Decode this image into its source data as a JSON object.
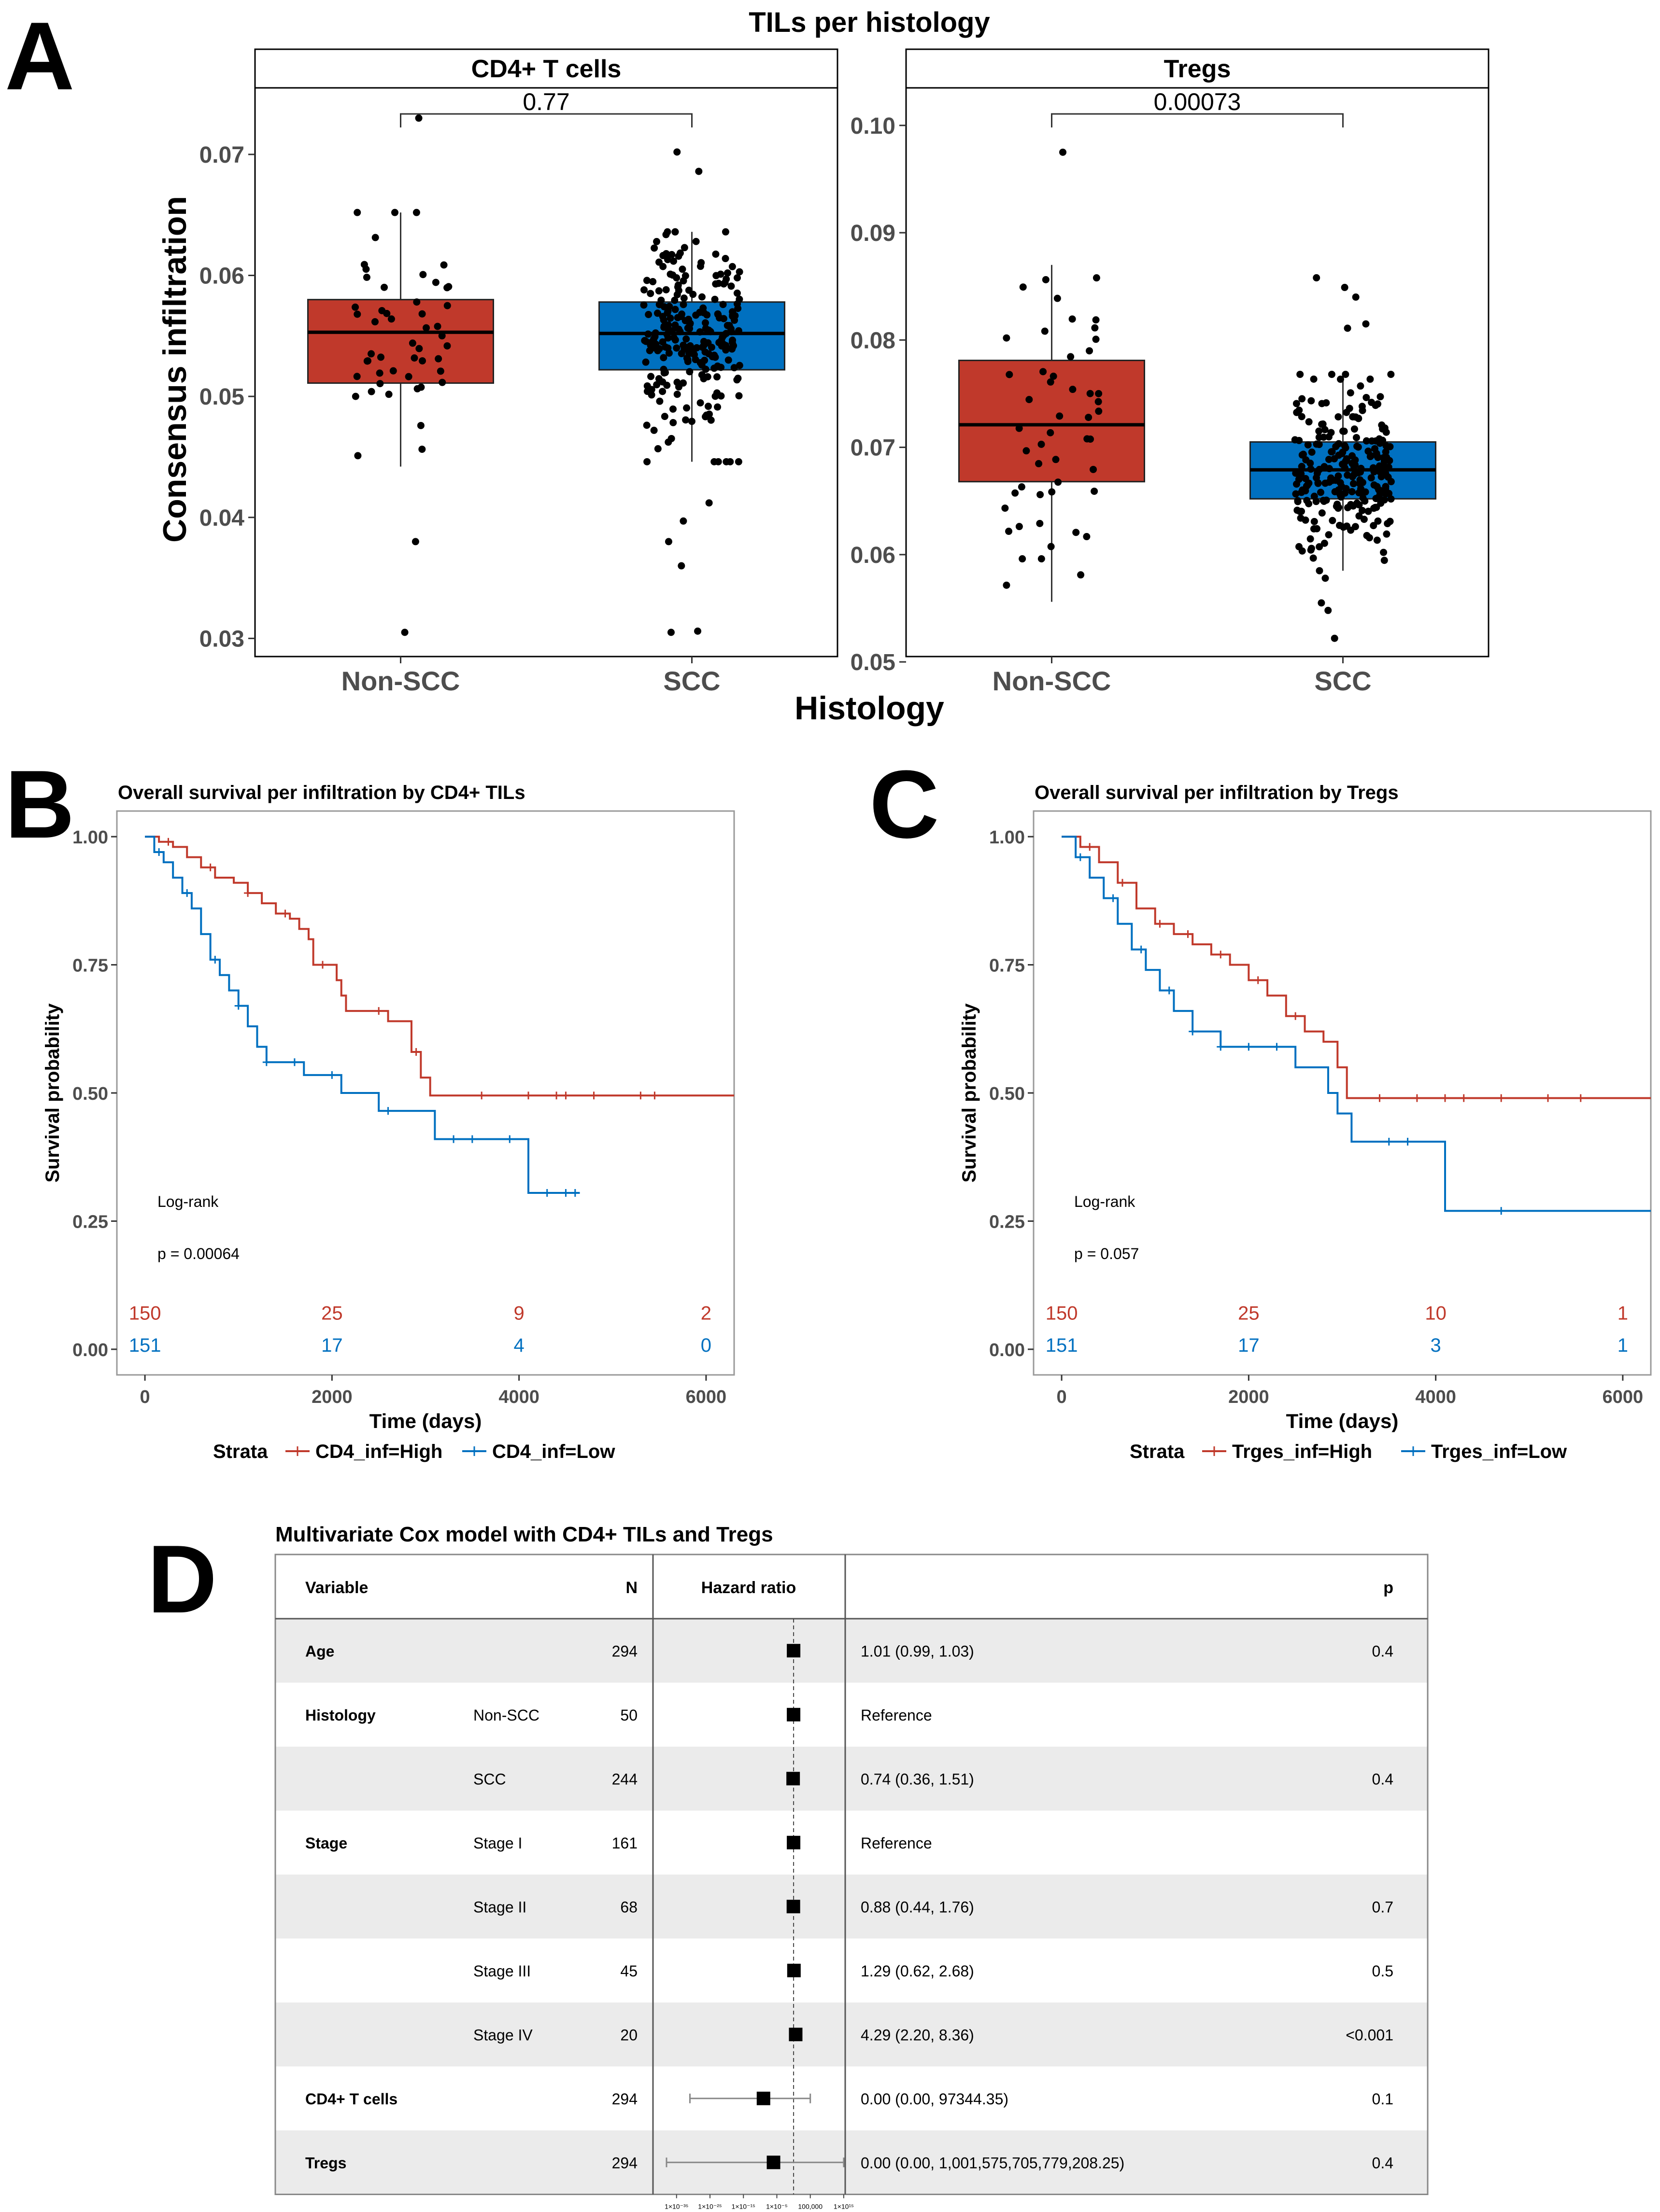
{
  "panel_letters": [
    "A",
    "B",
    "C",
    "D"
  ],
  "colors": {
    "red": "#c0392b",
    "blue": "#0070c0",
    "grid": "#e0e0e0",
    "band": "#ebebeb"
  },
  "chart_data": [
    {
      "id": "A",
      "type": "box",
      "title": "TILs per histology",
      "xlabel": "Histology",
      "ylabel": "Consensus infiltration",
      "facets": [
        {
          "name": "CD4+ T cells",
          "ylim": [
            0.0285,
            0.0755
          ],
          "yticks": [
            0.03,
            0.04,
            0.05,
            0.06,
            0.07
          ],
          "ytick_labels": [
            "0.03",
            "0.04",
            "0.05",
            "0.06",
            "0.07"
          ],
          "categories": [
            "Non-SCC",
            "SCC"
          ],
          "pvalue": "0.77",
          "boxes": [
            {
              "group": "Non-SCC",
              "color": "#c0392b",
              "q1": 0.0511,
              "median": 0.0553,
              "q3": 0.058,
              "whisker_low": 0.0442,
              "whisker_high": 0.0652
            },
            {
              "group": "SCC",
              "color": "#0070c0",
              "q1": 0.0522,
              "median": 0.0552,
              "q3": 0.0578,
              "whisker_low": 0.0446,
              "whisker_high": 0.0636
            }
          ],
          "outliers": [
            {
              "group": "Non-SCC",
              "values": [
                0.073,
                0.038,
                0.0305
              ]
            },
            {
              "group": "SCC",
              "values": [
                0.0702,
                0.0686,
                0.0412,
                0.0397,
                0.038,
                0.036,
                0.0305,
                0.0306
              ]
            }
          ]
        },
        {
          "name": "Tregs",
          "ylim": [
            0.0505,
            0.1035
          ],
          "yticks": [
            0.05,
            0.06,
            0.07,
            0.08,
            0.09,
            0.1
          ],
          "ytick_labels": [
            "0.05",
            "0.06",
            "0.07",
            "0.08",
            "0.09",
            "0.10"
          ],
          "categories": [
            "Non-SCC",
            "SCC"
          ],
          "pvalue": "0.00073",
          "boxes": [
            {
              "group": "Non-SCC",
              "color": "#c0392b",
              "q1": 0.0668,
              "median": 0.0721,
              "q3": 0.0781,
              "whisker_low": 0.0556,
              "whisker_high": 0.087
            },
            {
              "group": "SCC",
              "color": "#0070c0",
              "q1": 0.0652,
              "median": 0.0679,
              "q3": 0.0705,
              "whisker_low": 0.0585,
              "whisker_high": 0.0768
            }
          ],
          "outliers": [
            {
              "group": "Non-SCC",
              "values": [
                0.0975
              ]
            },
            {
              "group": "SCC",
              "values": [
                0.0858,
                0.0849,
                0.084,
                0.0815,
                0.0811,
                0.0578,
                0.0555,
                0.0548,
                0.0522
              ]
            }
          ]
        }
      ]
    },
    {
      "id": "B",
      "type": "line",
      "subtype": "kaplan-meier",
      "title": "Overall survival per infiltration by CD4+ TILs",
      "xlabel": "Time (days)",
      "ylabel": "Survival probability",
      "xlim": [
        -300,
        6300
      ],
      "ylim": [
        -0.05,
        1.05
      ],
      "xticks": [
        0,
        2000,
        4000,
        6000
      ],
      "yticks": [
        0,
        0.25,
        0.5,
        0.75,
        1
      ],
      "ytick_labels": [
        "0.00",
        "0.25",
        "0.50",
        "0.75",
        "1.00"
      ],
      "annotation": [
        "Log-rank",
        "p = 0.00064"
      ],
      "legend_title": "Strata",
      "risk_times": [
        0,
        2000,
        4000,
        6000
      ],
      "series": [
        {
          "name": "CD4_inf=High",
          "color": "#c0392b",
          "steps": [
            [
              0,
              1.0
            ],
            [
              150,
              0.99
            ],
            [
              300,
              0.98
            ],
            [
              450,
              0.96
            ],
            [
              600,
              0.94
            ],
            [
              750,
              0.92
            ],
            [
              950,
              0.91
            ],
            [
              1100,
              0.89
            ],
            [
              1250,
              0.87
            ],
            [
              1400,
              0.85
            ],
            [
              1550,
              0.84
            ],
            [
              1650,
              0.82
            ],
            [
              1750,
              0.8
            ],
            [
              1800,
              0.75
            ],
            [
              2050,
              0.72
            ],
            [
              2100,
              0.69
            ],
            [
              2150,
              0.66
            ],
            [
              2600,
              0.64
            ],
            [
              2850,
              0.58
            ],
            [
              2950,
              0.53
            ],
            [
              3050,
              0.495
            ],
            [
              6300,
              0.495
            ]
          ],
          "censor_times": [
            250,
            700,
            1100,
            1500,
            1900,
            2500,
            2900,
            3600,
            4100,
            4400,
            4500,
            4800,
            5300,
            5450
          ],
          "risk": [
            "150",
            "25",
            "9",
            "2"
          ]
        },
        {
          "name": "CD4_inf=Low",
          "color": "#0070c0",
          "steps": [
            [
              0,
              1.0
            ],
            [
              100,
              0.97
            ],
            [
              200,
              0.95
            ],
            [
              300,
              0.92
            ],
            [
              400,
              0.89
            ],
            [
              500,
              0.86
            ],
            [
              600,
              0.81
            ],
            [
              700,
              0.76
            ],
            [
              800,
              0.73
            ],
            [
              900,
              0.7
            ],
            [
              1000,
              0.67
            ],
            [
              1100,
              0.63
            ],
            [
              1200,
              0.59
            ],
            [
              1300,
              0.56
            ],
            [
              1700,
              0.535
            ],
            [
              2100,
              0.5
            ],
            [
              2500,
              0.465
            ],
            [
              3100,
              0.41
            ],
            [
              4100,
              0.305
            ],
            [
              4650,
              0.305
            ]
          ],
          "censor_times": [
            150,
            450,
            750,
            1000,
            1300,
            1600,
            2000,
            2600,
            3300,
            3500,
            3900,
            4300,
            4500,
            4600
          ],
          "risk": [
            "151",
            "17",
            "4",
            "0"
          ]
        }
      ]
    },
    {
      "id": "C",
      "type": "line",
      "subtype": "kaplan-meier",
      "title": "Overall survival per infiltration by Tregs",
      "xlabel": "Time (days)",
      "ylabel": "Survival probability",
      "xlim": [
        -300,
        6300
      ],
      "ylim": [
        -0.05,
        1.05
      ],
      "xticks": [
        0,
        2000,
        4000,
        6000
      ],
      "yticks": [
        0,
        0.25,
        0.5,
        0.75,
        1
      ],
      "ytick_labels": [
        "0.00",
        "0.25",
        "0.50",
        "0.75",
        "1.00"
      ],
      "annotation": [
        "Log-rank",
        "p = 0.057"
      ],
      "legend_title": "Strata",
      "risk_times": [
        0,
        2000,
        4000,
        6000
      ],
      "series": [
        {
          "name": "Trges_inf=High",
          "color": "#c0392b",
          "steps": [
            [
              0,
              1.0
            ],
            [
              200,
              0.98
            ],
            [
              400,
              0.95
            ],
            [
              600,
              0.91
            ],
            [
              800,
              0.86
            ],
            [
              1000,
              0.83
            ],
            [
              1200,
              0.81
            ],
            [
              1400,
              0.79
            ],
            [
              1600,
              0.77
            ],
            [
              1800,
              0.75
            ],
            [
              2000,
              0.72
            ],
            [
              2200,
              0.69
            ],
            [
              2400,
              0.65
            ],
            [
              2600,
              0.62
            ],
            [
              2800,
              0.6
            ],
            [
              2950,
              0.55
            ],
            [
              3050,
              0.49
            ],
            [
              6300,
              0.49
            ]
          ],
          "censor_times": [
            300,
            650,
            1050,
            1350,
            1700,
            2100,
            2500,
            3400,
            3800,
            4100,
            4300,
            4700,
            5200,
            5550
          ],
          "risk": [
            "150",
            "25",
            "10",
            "1"
          ]
        },
        {
          "name": "Trges_inf=Low",
          "color": "#0070c0",
          "steps": [
            [
              0,
              1.0
            ],
            [
              150,
              0.96
            ],
            [
              300,
              0.92
            ],
            [
              450,
              0.88
            ],
            [
              600,
              0.83
            ],
            [
              750,
              0.78
            ],
            [
              900,
              0.74
            ],
            [
              1050,
              0.7
            ],
            [
              1200,
              0.66
            ],
            [
              1400,
              0.62
            ],
            [
              1700,
              0.59
            ],
            [
              2500,
              0.55
            ],
            [
              2850,
              0.5
            ],
            [
              2950,
              0.46
            ],
            [
              3100,
              0.405
            ],
            [
              4100,
              0.27
            ],
            [
              6300,
              0.27
            ]
          ],
          "censor_times": [
            200,
            550,
            850,
            1150,
            1400,
            1700,
            2000,
            2300,
            3500,
            3700,
            4700
          ],
          "risk": [
            "151",
            "17",
            "3",
            "1"
          ]
        }
      ]
    },
    {
      "id": "D",
      "type": "table",
      "subtype": "forest",
      "title": "Multivariate Cox model with CD4+ TILs and Tregs",
      "headers": {
        "variable": "Variable",
        "n": "N",
        "hr": "Hazard ratio",
        "p": "p"
      },
      "log10_axis_range": [
        -38,
        14
      ],
      "axis_ticks": [
        {
          "label": "1×10⁻³⁵",
          "log10": -35
        },
        {
          "label": "1×10⁻²⁵",
          "log10": -25
        },
        {
          "label": "1×10⁻¹⁵",
          "log10": -15
        },
        {
          "label": "1×10⁻⁵",
          "log10": -5
        },
        {
          "label": "100,000",
          "log10": 5
        },
        {
          "label": "1×10¹⁵",
          "log10": 15
        }
      ],
      "rows": [
        {
          "variable": "Age",
          "level": "",
          "n": "294",
          "ci_text": "1.01 (0.99, 1.03)",
          "p": "0.4",
          "hr": 1.01,
          "lo": 0.99,
          "hi": 1.03
        },
        {
          "variable": "Histology",
          "level": "Non-SCC",
          "n": "50",
          "ci_text": "Reference",
          "p": "",
          "hr": 1.0,
          "lo": 1.0,
          "hi": 1.0
        },
        {
          "variable": "",
          "level": "SCC",
          "n": "244",
          "ci_text": "0.74 (0.36, 1.51)",
          "p": "0.4",
          "hr": 0.74,
          "lo": 0.36,
          "hi": 1.51
        },
        {
          "variable": "Stage",
          "level": "Stage I",
          "n": "161",
          "ci_text": "Reference",
          "p": "",
          "hr": 1.0,
          "lo": 1.0,
          "hi": 1.0
        },
        {
          "variable": "",
          "level": "Stage II",
          "n": "68",
          "ci_text": "0.88 (0.44, 1.76)",
          "p": "0.7",
          "hr": 0.88,
          "lo": 0.44,
          "hi": 1.76
        },
        {
          "variable": "",
          "level": "Stage III",
          "n": "45",
          "ci_text": "1.29 (0.62, 2.68)",
          "p": "0.5",
          "hr": 1.29,
          "lo": 0.62,
          "hi": 2.68
        },
        {
          "variable": "",
          "level": "Stage IV",
          "n": "20",
          "ci_text": "4.29 (2.20, 8.36)",
          "p": "<0.001",
          "hr": 4.29,
          "lo": 2.2,
          "hi": 8.36
        },
        {
          "variable": "CD4+ T cells",
          "level": "",
          "n": "294",
          "ci_text": "0.00 (0.00, 97344.35)",
          "p": "0.1",
          "hr_log10": -9,
          "lo_log10": -31,
          "hi_log10": 5
        },
        {
          "variable": "Tregs",
          "level": "",
          "n": "294",
          "ci_text": "0.00 (0.00, 1,001,575,705,779,208.25)",
          "p": "0.4",
          "hr_log10": -6,
          "lo_log10": -38,
          "hi_log10": 15
        }
      ]
    }
  ]
}
